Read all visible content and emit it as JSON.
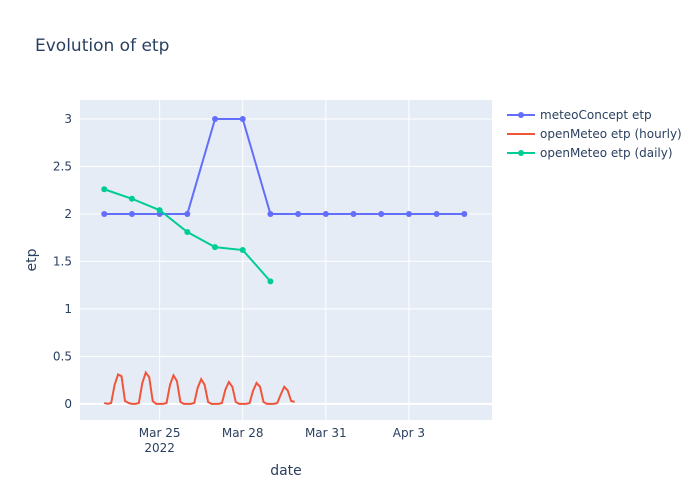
{
  "chart_data": {
    "type": "line",
    "title": "Evolution of etp",
    "x_label": "date",
    "y_label": "etp",
    "xlim": [
      "2022-03-22 03:00",
      "2022-04-06 00:00"
    ],
    "xticks": [
      {
        "value": "2022-03-25",
        "label": "Mar 25\n2022"
      },
      {
        "value": "2022-03-28",
        "label": "Mar 28"
      },
      {
        "value": "2022-03-31",
        "label": "Mar 31"
      },
      {
        "value": "2022-04-03",
        "label": "Apr 3"
      }
    ],
    "ylim": [
      -0.17,
      3.2
    ],
    "yticks": [
      0,
      0.5,
      1,
      1.5,
      2,
      2.5,
      3
    ],
    "grid": true,
    "series": [
      {
        "name": "meteoConcept etp",
        "color": "#636efa",
        "markers": true,
        "x": [
          "2022-03-23",
          "2022-03-24",
          "2022-03-25",
          "2022-03-26",
          "2022-03-27",
          "2022-03-28",
          "2022-03-29",
          "2022-03-30",
          "2022-03-31",
          "2022-04-01",
          "2022-04-02",
          "2022-04-03",
          "2022-04-04",
          "2022-04-05"
        ],
        "values": [
          2,
          2,
          2,
          2,
          3,
          3,
          2,
          2,
          2,
          2,
          2,
          2,
          2,
          2
        ]
      },
      {
        "name": "openMeteo etp (hourly)",
        "color": "#ef553b",
        "markers": false,
        "x": [
          "2022-03-23 00:00",
          "2022-03-23 03:00",
          "2022-03-23 06:00",
          "2022-03-23 09:00",
          "2022-03-23 12:00",
          "2022-03-23 15:00",
          "2022-03-23 18:00",
          "2022-03-23 21:00",
          "2022-03-24 00:00",
          "2022-03-24 03:00",
          "2022-03-24 06:00",
          "2022-03-24 09:00",
          "2022-03-24 12:00",
          "2022-03-24 15:00",
          "2022-03-24 18:00",
          "2022-03-24 21:00",
          "2022-03-25 00:00",
          "2022-03-25 03:00",
          "2022-03-25 06:00",
          "2022-03-25 09:00",
          "2022-03-25 12:00",
          "2022-03-25 15:00",
          "2022-03-25 18:00",
          "2022-03-25 21:00",
          "2022-03-26 00:00",
          "2022-03-26 03:00",
          "2022-03-26 06:00",
          "2022-03-26 09:00",
          "2022-03-26 12:00",
          "2022-03-26 15:00",
          "2022-03-26 18:00",
          "2022-03-26 21:00",
          "2022-03-27 00:00",
          "2022-03-27 03:00",
          "2022-03-27 06:00",
          "2022-03-27 09:00",
          "2022-03-27 12:00",
          "2022-03-27 15:00",
          "2022-03-27 18:00",
          "2022-03-27 21:00",
          "2022-03-28 00:00",
          "2022-03-28 03:00",
          "2022-03-28 06:00",
          "2022-03-28 09:00",
          "2022-03-28 12:00",
          "2022-03-28 15:00",
          "2022-03-28 18:00",
          "2022-03-28 21:00",
          "2022-03-29 00:00",
          "2022-03-29 03:00",
          "2022-03-29 06:00",
          "2022-03-29 09:00",
          "2022-03-29 12:00",
          "2022-03-29 15:00",
          "2022-03-29 18:00",
          "2022-03-29 21:00"
        ],
        "values": [
          0.01,
          0,
          0.01,
          0.2,
          0.31,
          0.29,
          0.03,
          0.01,
          0,
          0,
          0.01,
          0.22,
          0.33,
          0.28,
          0.03,
          0,
          0,
          0,
          0.01,
          0.2,
          0.3,
          0.24,
          0.02,
          0,
          0,
          0,
          0.01,
          0.17,
          0.26,
          0.2,
          0.02,
          0,
          0,
          0,
          0.01,
          0.15,
          0.23,
          0.18,
          0.02,
          0,
          0,
          0,
          0.01,
          0.14,
          0.22,
          0.18,
          0.02,
          0,
          0,
          0,
          0.01,
          0.1,
          0.18,
          0.14,
          0.03,
          0.02
        ]
      },
      {
        "name": "openMeteo etp (daily)",
        "color": "#00cc96",
        "markers": true,
        "x": [
          "2022-03-23",
          "2022-03-24",
          "2022-03-25",
          "2022-03-26",
          "2022-03-27",
          "2022-03-28",
          "2022-03-29"
        ],
        "values": [
          2.26,
          2.16,
          2.04,
          1.81,
          1.65,
          1.62,
          1.29
        ]
      }
    ]
  }
}
